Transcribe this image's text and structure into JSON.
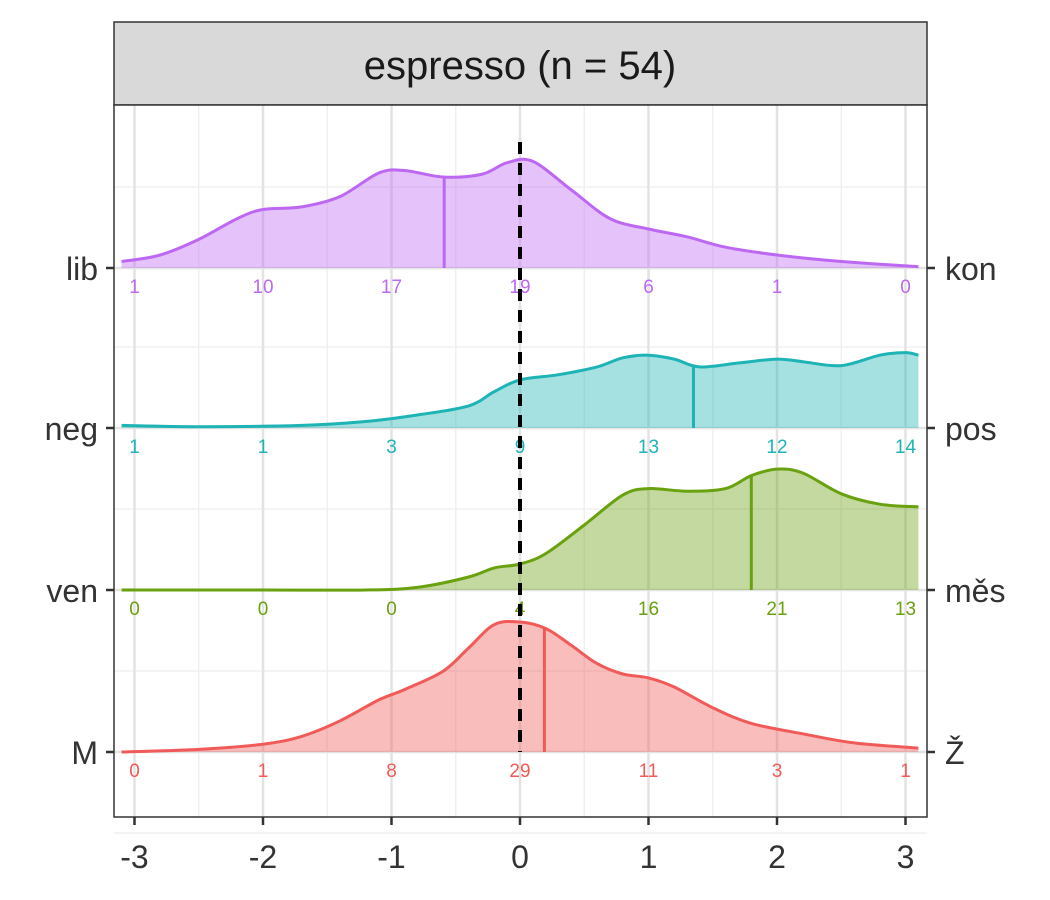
{
  "chart_data": {
    "type": "ridgeline",
    "title": "espresso (n = 54)",
    "xlim": [
      -3.1,
      3.1
    ],
    "x_ticks": [
      -3,
      -2,
      -1,
      0,
      1,
      2,
      3
    ],
    "x_tick_labels": [
      "-3",
      "-2",
      "-1",
      "0",
      "1",
      "2",
      "3"
    ],
    "reference_line": 0,
    "reference_line_style": "dashed",
    "grid": true,
    "count_positions": [
      -3,
      -2,
      -1,
      0,
      1,
      2,
      3
    ],
    "series": [
      {
        "left_label": "M",
        "right_label": "Ž",
        "color": "#F05A58",
        "mean": 0.19,
        "counts": [
          0,
          1,
          8,
          29,
          11,
          3,
          1
        ],
        "density": [
          [
            -3.1,
            0.0
          ],
          [
            -2.5,
            0.02
          ],
          [
            -2,
            0.06
          ],
          [
            -1.7,
            0.12
          ],
          [
            -1.4,
            0.24
          ],
          [
            -1.1,
            0.4
          ],
          [
            -0.9,
            0.48
          ],
          [
            -0.6,
            0.62
          ],
          [
            -0.4,
            0.8
          ],
          [
            -0.2,
            0.98
          ],
          [
            0,
            1.0
          ],
          [
            0.2,
            0.95
          ],
          [
            0.4,
            0.82
          ],
          [
            0.6,
            0.68
          ],
          [
            0.8,
            0.6
          ],
          [
            1.0,
            0.57
          ],
          [
            1.2,
            0.5
          ],
          [
            1.5,
            0.34
          ],
          [
            1.8,
            0.22
          ],
          [
            2.2,
            0.14
          ],
          [
            2.6,
            0.07
          ],
          [
            3.1,
            0.03
          ]
        ]
      },
      {
        "left_label": "ven",
        "right_label": "měs",
        "color": "#69A10F",
        "mean": 1.8,
        "counts": [
          0,
          0,
          0,
          4,
          16,
          21,
          13
        ],
        "density": [
          [
            -3.1,
            0.0
          ],
          [
            -2,
            0.0
          ],
          [
            -1.2,
            0.0
          ],
          [
            -0.8,
            0.02
          ],
          [
            -0.4,
            0.1
          ],
          [
            -0.2,
            0.17
          ],
          [
            0,
            0.2
          ],
          [
            0.2,
            0.28
          ],
          [
            0.5,
            0.5
          ],
          [
            0.8,
            0.73
          ],
          [
            1.0,
            0.78
          ],
          [
            1.3,
            0.76
          ],
          [
            1.6,
            0.78
          ],
          [
            1.8,
            0.88
          ],
          [
            2.0,
            0.93
          ],
          [
            2.2,
            0.9
          ],
          [
            2.5,
            0.74
          ],
          [
            2.8,
            0.66
          ],
          [
            3.1,
            0.64
          ]
        ]
      },
      {
        "left_label": "neg",
        "right_label": "pos",
        "color": "#1EB3B5",
        "mean": 1.35,
        "counts": [
          1,
          1,
          3,
          9,
          13,
          12,
          14
        ],
        "density": [
          [
            -3.1,
            0.02
          ],
          [
            -2.5,
            0.01
          ],
          [
            -1.7,
            0.02
          ],
          [
            -1.2,
            0.05
          ],
          [
            -0.8,
            0.1
          ],
          [
            -0.4,
            0.17
          ],
          [
            -0.2,
            0.28
          ],
          [
            0,
            0.37
          ],
          [
            0.3,
            0.41
          ],
          [
            0.6,
            0.47
          ],
          [
            0.8,
            0.54
          ],
          [
            1.0,
            0.56
          ],
          [
            1.2,
            0.53
          ],
          [
            1.4,
            0.47
          ],
          [
            1.7,
            0.5
          ],
          [
            2.0,
            0.53
          ],
          [
            2.2,
            0.51
          ],
          [
            2.5,
            0.48
          ],
          [
            2.8,
            0.56
          ],
          [
            3.0,
            0.58
          ],
          [
            3.1,
            0.56
          ]
        ]
      },
      {
        "left_label": "lib",
        "right_label": "kon",
        "color": "#BD68F2",
        "mean": -0.59,
        "counts": [
          1,
          10,
          17,
          19,
          6,
          1,
          0
        ],
        "density": [
          [
            -3.1,
            0.05
          ],
          [
            -2.8,
            0.1
          ],
          [
            -2.5,
            0.22
          ],
          [
            -2.2,
            0.38
          ],
          [
            -2,
            0.45
          ],
          [
            -1.7,
            0.47
          ],
          [
            -1.4,
            0.55
          ],
          [
            -1.1,
            0.73
          ],
          [
            -0.9,
            0.75
          ],
          [
            -0.6,
            0.7
          ],
          [
            -0.3,
            0.72
          ],
          [
            -0.1,
            0.81
          ],
          [
            0.1,
            0.82
          ],
          [
            0.4,
            0.6
          ],
          [
            0.7,
            0.38
          ],
          [
            1.0,
            0.3
          ],
          [
            1.3,
            0.24
          ],
          [
            1.6,
            0.16
          ],
          [
            2.0,
            0.1
          ],
          [
            2.5,
            0.05
          ],
          [
            3.1,
            0.01
          ]
        ]
      }
    ]
  }
}
